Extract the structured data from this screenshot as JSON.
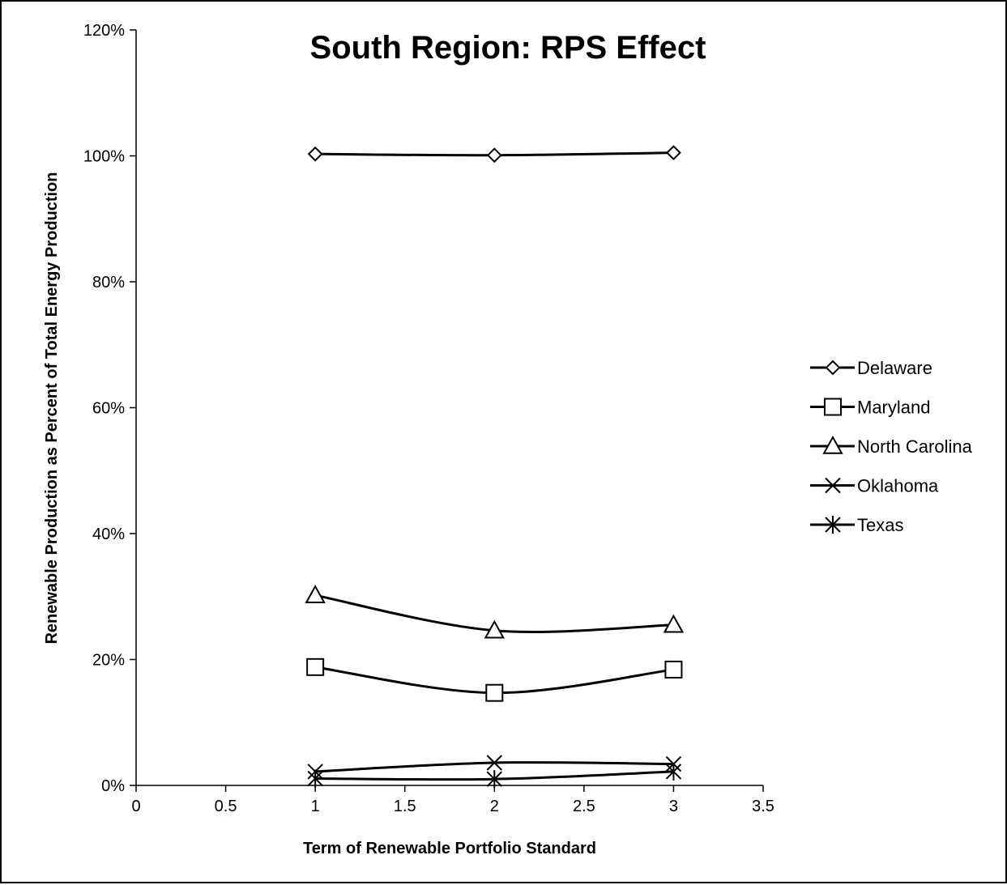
{
  "chart_data": {
    "type": "scatter",
    "title": "South Region: RPS Effect",
    "xlabel": "Term of Renewable Portfolio Standard",
    "ylabel": "Renewable Production as Percent of Total Energy Production",
    "xlim": [
      0,
      3.5
    ],
    "ylim": [
      0,
      1.2
    ],
    "x_ticks": [
      0,
      0.5,
      1,
      1.5,
      2,
      2.5,
      3,
      3.5
    ],
    "x_tick_labels": [
      "0",
      "0.5",
      "1",
      "1.5",
      "2",
      "2.5",
      "3",
      "3.5"
    ],
    "y_ticks": [
      0,
      0.2,
      0.4,
      0.6,
      0.8,
      1.0,
      1.2
    ],
    "y_tick_labels": [
      "0%",
      "20%",
      "40%",
      "60%",
      "80%",
      "100%",
      "120%"
    ],
    "grid": false,
    "legend_position": "right",
    "line_style": "smooth",
    "color": "#000000",
    "series": [
      {
        "name": "Delaware",
        "marker": "diamond",
        "x": [
          1,
          2,
          3
        ],
        "y": [
          1.003,
          1.001,
          1.005
        ]
      },
      {
        "name": "Maryland",
        "marker": "square",
        "x": [
          1,
          2,
          3
        ],
        "y": [
          0.188,
          0.147,
          0.184
        ]
      },
      {
        "name": "North Carolina",
        "marker": "triangle",
        "x": [
          1,
          2,
          3
        ],
        "y": [
          0.302,
          0.246,
          0.255
        ]
      },
      {
        "name": "Oklahoma",
        "marker": "x",
        "x": [
          1,
          2,
          3
        ],
        "y": [
          0.022,
          0.036,
          0.034
        ]
      },
      {
        "name": "Texas",
        "marker": "star",
        "x": [
          1,
          2,
          3
        ],
        "y": [
          0.011,
          0.01,
          0.022
        ]
      }
    ]
  }
}
